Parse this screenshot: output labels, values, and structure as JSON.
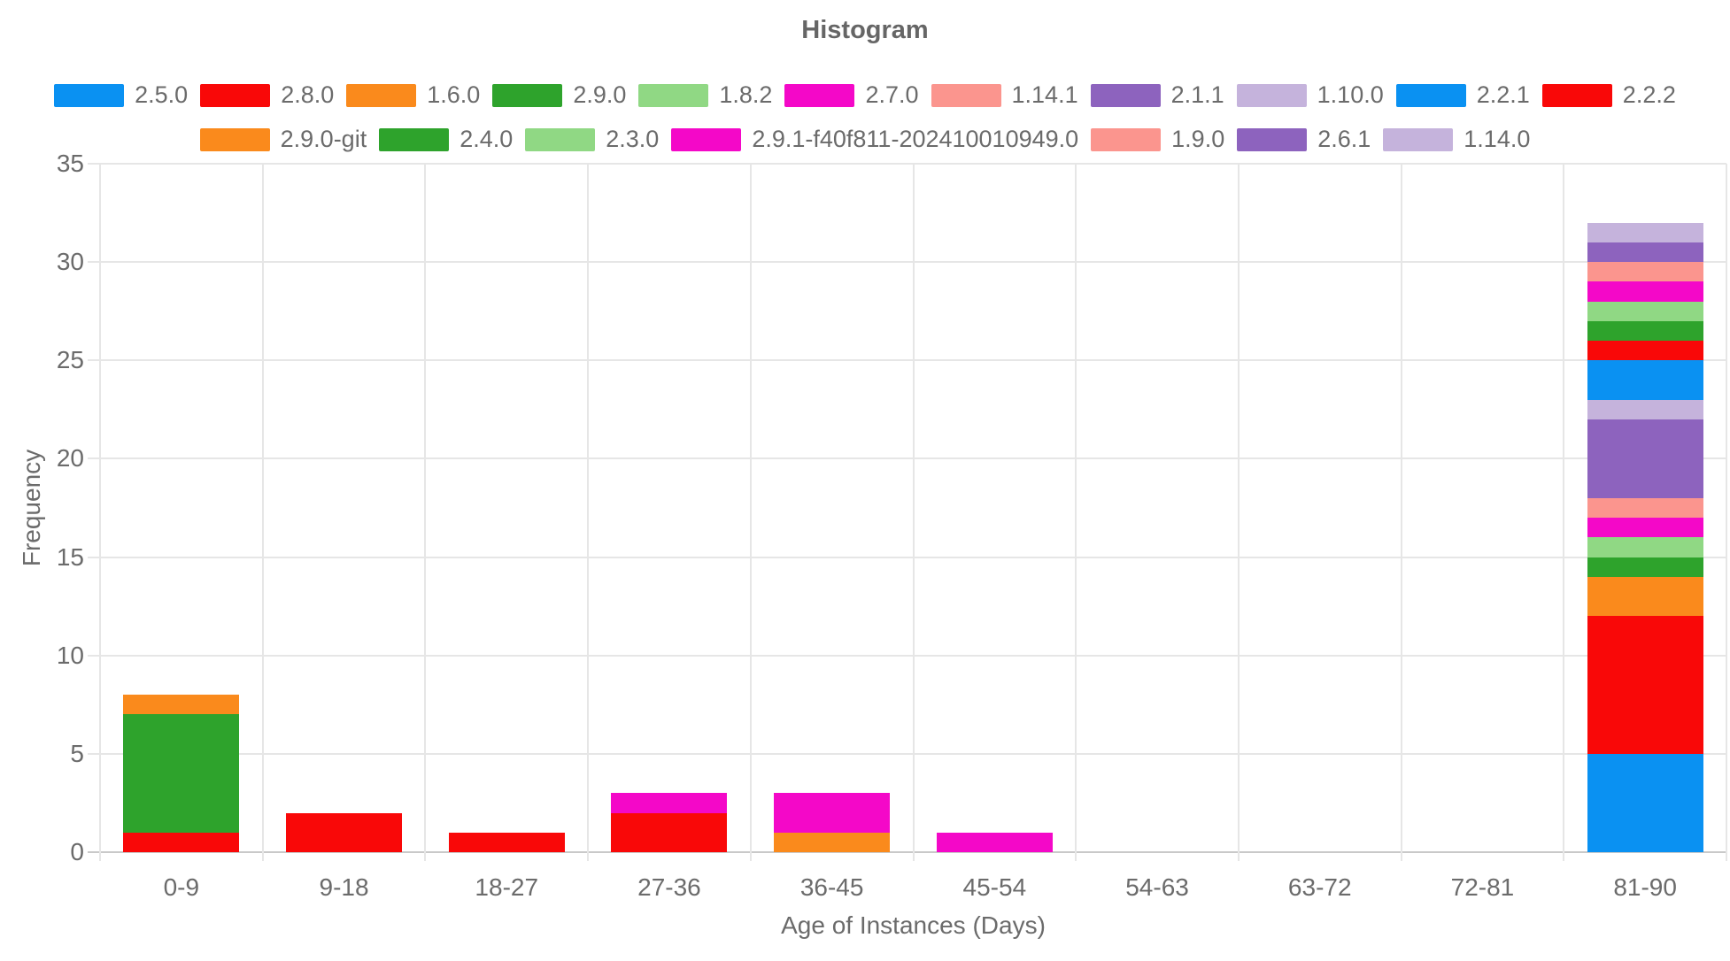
{
  "chart_data": {
    "type": "bar",
    "stacked": true,
    "title": "Histogram",
    "xlabel": "Age of Instances (Days)",
    "ylabel": "Frequency",
    "categories": [
      "0-9",
      "9-18",
      "18-27",
      "27-36",
      "36-45",
      "45-54",
      "54-63",
      "63-72",
      "72-81",
      "81-90"
    ],
    "ylim": [
      0,
      35
    ],
    "yticks": [
      0,
      5,
      10,
      15,
      20,
      25,
      30,
      35
    ],
    "grid": true,
    "legend_position": "top",
    "legend_rows": [
      11,
      7
    ],
    "series": [
      {
        "name": "2.5.0",
        "color": "#0A91F2",
        "values": [
          0,
          0,
          0,
          0,
          0,
          0,
          0,
          0,
          0,
          5
        ]
      },
      {
        "name": "2.8.0",
        "color": "#F90808",
        "values": [
          1,
          2,
          1,
          2,
          0,
          0,
          0,
          0,
          0,
          7
        ]
      },
      {
        "name": "1.6.0",
        "color": "#FA8A1C",
        "values": [
          0,
          0,
          0,
          0,
          1,
          0,
          0,
          0,
          0,
          2
        ]
      },
      {
        "name": "2.9.0",
        "color": "#2EA32C",
        "values": [
          6,
          0,
          0,
          0,
          0,
          0,
          0,
          0,
          0,
          1
        ]
      },
      {
        "name": "1.8.2",
        "color": "#90D884",
        "values": [
          0,
          0,
          0,
          0,
          0,
          0,
          0,
          0,
          0,
          1
        ]
      },
      {
        "name": "2.7.0",
        "color": "#F408C8",
        "values": [
          0,
          0,
          0,
          1,
          2,
          1,
          0,
          0,
          0,
          1
        ]
      },
      {
        "name": "1.14.1",
        "color": "#FB958E",
        "values": [
          0,
          0,
          0,
          0,
          0,
          0,
          0,
          0,
          0,
          1
        ]
      },
      {
        "name": "2.1.1",
        "color": "#8D63BE",
        "values": [
          0,
          0,
          0,
          0,
          0,
          0,
          0,
          0,
          0,
          4
        ]
      },
      {
        "name": "1.10.0",
        "color": "#C5B3DC",
        "values": [
          0,
          0,
          0,
          0,
          0,
          0,
          0,
          0,
          0,
          1
        ]
      },
      {
        "name": "2.2.1",
        "color": "#0A91F2",
        "values": [
          0,
          0,
          0,
          0,
          0,
          0,
          0,
          0,
          0,
          2
        ]
      },
      {
        "name": "2.2.2",
        "color": "#F90808",
        "values": [
          0,
          0,
          0,
          0,
          0,
          0,
          0,
          0,
          0,
          1
        ]
      },
      {
        "name": "2.9.0-git",
        "color": "#FA8A1C",
        "values": [
          1,
          0,
          0,
          0,
          0,
          0,
          0,
          0,
          0,
          0
        ]
      },
      {
        "name": "2.4.0",
        "color": "#2EA32C",
        "values": [
          0,
          0,
          0,
          0,
          0,
          0,
          0,
          0,
          0,
          1
        ]
      },
      {
        "name": "2.3.0",
        "color": "#90D884",
        "values": [
          0,
          0,
          0,
          0,
          0,
          0,
          0,
          0,
          0,
          1
        ]
      },
      {
        "name": "2.9.1-f40f811-202410010949.0",
        "color": "#F408C8",
        "values": [
          0,
          0,
          0,
          0,
          0,
          0,
          0,
          0,
          0,
          1
        ]
      },
      {
        "name": "1.9.0",
        "color": "#FB958E",
        "values": [
          0,
          0,
          0,
          0,
          0,
          0,
          0,
          0,
          0,
          1
        ]
      },
      {
        "name": "2.6.1",
        "color": "#8D63BE",
        "values": [
          0,
          0,
          0,
          0,
          0,
          0,
          0,
          0,
          0,
          1
        ]
      },
      {
        "name": "1.14.0",
        "color": "#C5B3DC",
        "values": [
          0,
          0,
          0,
          0,
          0,
          0,
          0,
          0,
          0,
          1
        ]
      }
    ],
    "grid_color": "#E6E6E6",
    "baseline_color": "#C9C9C9",
    "text_color": "#6B6B6B",
    "background": "#FFFFFF"
  }
}
